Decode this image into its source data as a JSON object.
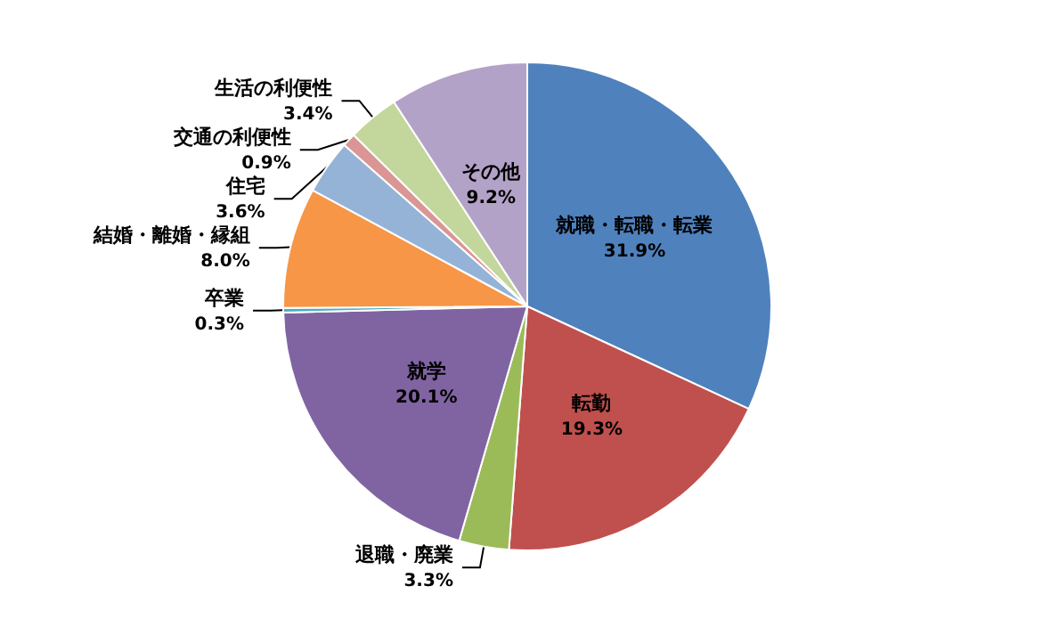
{
  "chart_data": {
    "type": "pie",
    "categories": [
      "就職・転職・転業",
      "転勤",
      "退職・廃業",
      "就学",
      "卒業",
      "結婚・離婚・縁組",
      "住宅",
      "交通の利便性",
      "生活の利便性",
      "その他"
    ],
    "values": [
      31.9,
      19.3,
      3.3,
      20.1,
      0.3,
      8.0,
      3.6,
      0.9,
      3.4,
      9.2
    ],
    "value_labels": [
      "31.9%",
      "19.3%",
      "3.3%",
      "20.1%",
      "0.3%",
      "8.0%",
      "3.6%",
      "0.9%",
      "3.4%",
      "9.2%"
    ],
    "colors": [
      "#4f81bd",
      "#c0504d",
      "#9bbb59",
      "#8064a2",
      "#4bacc6",
      "#f79646",
      "#95b3d7",
      "#d99694",
      "#c3d69b",
      "#b3a2c7"
    ],
    "legend": false
  }
}
